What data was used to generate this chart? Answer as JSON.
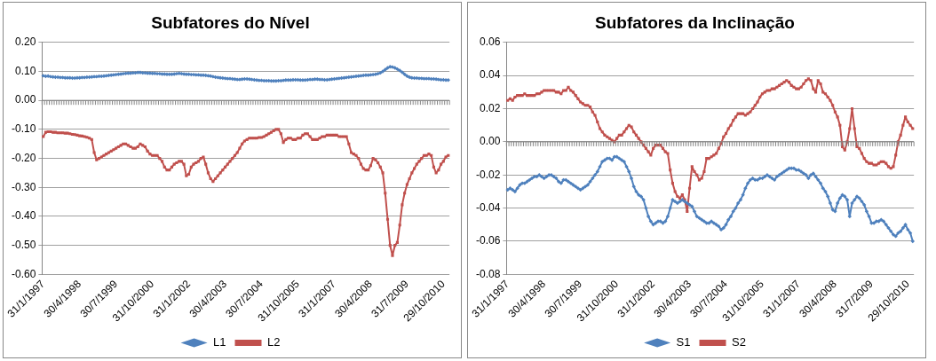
{
  "chart_data": [
    {
      "type": "line",
      "title": "Subfatores do Nível",
      "grid": "y",
      "legend": "bottom",
      "line_style": "solid",
      "categories": [
        "31/1/1997",
        null,
        null,
        null,
        null,
        null,
        null,
        null,
        null,
        null,
        null,
        null,
        null,
        null,
        null,
        "30/4/1998",
        null,
        null,
        null,
        null,
        null,
        null,
        null,
        null,
        null,
        null,
        null,
        null,
        null,
        null,
        "30/7/1999",
        null,
        null,
        null,
        null,
        null,
        null,
        null,
        null,
        null,
        null,
        null,
        null,
        null,
        null,
        "31/10/2000",
        null,
        null,
        null,
        null,
        null,
        null,
        null,
        null,
        null,
        null,
        null,
        null,
        null,
        null,
        "31/1/2002",
        null,
        null,
        null,
        null,
        null,
        null,
        null,
        null,
        null,
        null,
        null,
        null,
        null,
        null,
        "30/4/2003",
        null,
        null,
        null,
        null,
        null,
        null,
        null,
        null,
        null,
        null,
        null,
        null,
        null,
        null,
        "30/7/2004",
        null,
        null,
        null,
        null,
        null,
        null,
        null,
        null,
        null,
        null,
        null,
        null,
        null,
        null,
        "31/10/2005",
        null,
        null,
        null,
        null,
        null,
        null,
        null,
        null,
        null,
        null,
        null,
        null,
        null,
        null,
        "31/1/2007",
        null,
        null,
        null,
        null,
        null,
        null,
        null,
        null,
        null,
        null,
        null,
        null,
        null,
        null,
        "30/4/2008",
        null,
        null,
        null,
        null,
        null,
        null,
        null,
        null,
        null,
        null,
        null,
        null,
        null,
        null,
        "31/7/2009",
        null,
        null,
        null,
        null,
        null,
        null,
        null,
        null,
        null,
        null,
        null,
        null,
        null,
        null,
        "29/10/2010",
        null,
        null
      ],
      "ylim": [
        -0.6,
        0.2
      ],
      "yticks": [
        {
          "value": -0.6,
          "label": "-0.60"
        },
        {
          "value": -0.5,
          "label": "-0.50"
        },
        {
          "value": -0.4,
          "label": "-0.40"
        },
        {
          "value": -0.3,
          "label": "-0.30"
        },
        {
          "value": -0.2,
          "label": "-0.20"
        },
        {
          "value": -0.1,
          "label": "-0.10"
        },
        {
          "value": 0,
          "label": "0.00"
        },
        {
          "value": 0.1,
          "label": "0.10"
        },
        {
          "value": 0.2,
          "label": "0.20"
        }
      ],
      "series": [
        {
          "name": "L1",
          "color": "#4f81bd",
          "marker": "diamond",
          "values": [
            0.085,
            0.083,
            0.084,
            0.082,
            0.081,
            0.08,
            0.08,
            0.079,
            0.079,
            0.078,
            0.078,
            0.078,
            0.077,
            0.077,
            0.078,
            0.078,
            0.079,
            0.079,
            0.08,
            0.08,
            0.081,
            0.082,
            0.082,
            0.083,
            0.083,
            0.084,
            0.085,
            0.086,
            0.087,
            0.088,
            0.089,
            0.09,
            0.091,
            0.092,
            0.093,
            0.094,
            0.094,
            0.095,
            0.095,
            0.096,
            0.096,
            0.095,
            0.095,
            0.094,
            0.094,
            0.093,
            0.093,
            0.092,
            0.092,
            0.091,
            0.091,
            0.09,
            0.09,
            0.09,
            0.091,
            0.092,
            0.093,
            0.092,
            0.091,
            0.09,
            0.09,
            0.089,
            0.089,
            0.088,
            0.088,
            0.087,
            0.087,
            0.086,
            0.085,
            0.084,
            0.082,
            0.08,
            0.079,
            0.078,
            0.077,
            0.076,
            0.075,
            0.075,
            0.074,
            0.073,
            0.072,
            0.072,
            0.073,
            0.074,
            0.074,
            0.073,
            0.072,
            0.071,
            0.07,
            0.069,
            0.069,
            0.068,
            0.068,
            0.068,
            0.067,
            0.067,
            0.067,
            0.068,
            0.068,
            0.069,
            0.07,
            0.07,
            0.07,
            0.071,
            0.071,
            0.071,
            0.07,
            0.07,
            0.07,
            0.071,
            0.072,
            0.072,
            0.073,
            0.073,
            0.072,
            0.072,
            0.071,
            0.071,
            0.072,
            0.073,
            0.074,
            0.075,
            0.076,
            0.077,
            0.078,
            0.079,
            0.08,
            0.081,
            0.082,
            0.083,
            0.084,
            0.085,
            0.086,
            0.087,
            0.087,
            0.088,
            0.089,
            0.09,
            0.092,
            0.095,
            0.1,
            0.106,
            0.112,
            0.116,
            0.115,
            0.112,
            0.108,
            0.103,
            0.097,
            0.09,
            0.084,
            0.08,
            0.078,
            0.077,
            0.077,
            0.076,
            0.076,
            0.075,
            0.075,
            0.075,
            0.074,
            0.074,
            0.073,
            0.072,
            0.071,
            0.071,
            0.07,
            0.07
          ]
        },
        {
          "name": "L2",
          "color": "#c0504d",
          "marker": "square",
          "values": [
            -0.125,
            -0.11,
            -0.108,
            -0.108,
            -0.11,
            -0.11,
            -0.112,
            -0.112,
            -0.112,
            -0.113,
            -0.113,
            -0.115,
            -0.117,
            -0.118,
            -0.12,
            -0.122,
            -0.123,
            -0.125,
            -0.127,
            -0.13,
            -0.135,
            -0.18,
            -0.205,
            -0.2,
            -0.195,
            -0.19,
            -0.185,
            -0.18,
            -0.175,
            -0.17,
            -0.165,
            -0.16,
            -0.155,
            -0.15,
            -0.15,
            -0.155,
            -0.16,
            -0.165,
            -0.165,
            -0.16,
            -0.15,
            -0.155,
            -0.16,
            -0.175,
            -0.185,
            -0.19,
            -0.19,
            -0.19,
            -0.2,
            -0.21,
            -0.23,
            -0.24,
            -0.24,
            -0.23,
            -0.22,
            -0.215,
            -0.21,
            -0.21,
            -0.22,
            -0.26,
            -0.255,
            -0.23,
            -0.22,
            -0.215,
            -0.21,
            -0.2,
            -0.195,
            -0.22,
            -0.25,
            -0.27,
            -0.28,
            -0.27,
            -0.26,
            -0.25,
            -0.24,
            -0.23,
            -0.22,
            -0.21,
            -0.2,
            -0.19,
            -0.18,
            -0.165,
            -0.15,
            -0.14,
            -0.135,
            -0.13,
            -0.13,
            -0.13,
            -0.13,
            -0.128,
            -0.128,
            -0.125,
            -0.12,
            -0.115,
            -0.11,
            -0.105,
            -0.1,
            -0.1,
            -0.115,
            -0.145,
            -0.135,
            -0.13,
            -0.13,
            -0.135,
            -0.135,
            -0.13,
            -0.13,
            -0.12,
            -0.115,
            -0.115,
            -0.125,
            -0.135,
            -0.135,
            -0.135,
            -0.13,
            -0.125,
            -0.125,
            -0.12,
            -0.12,
            -0.12,
            -0.12,
            -0.12,
            -0.125,
            -0.125,
            -0.125,
            -0.125,
            -0.15,
            -0.18,
            -0.185,
            -0.19,
            -0.2,
            -0.22,
            -0.235,
            -0.24,
            -0.24,
            -0.225,
            -0.2,
            -0.205,
            -0.215,
            -0.23,
            -0.25,
            -0.32,
            -0.41,
            -0.5,
            -0.535,
            -0.5,
            -0.49,
            -0.43,
            -0.36,
            -0.32,
            -0.29,
            -0.27,
            -0.25,
            -0.235,
            -0.22,
            -0.21,
            -0.2,
            -0.19,
            -0.19,
            -0.185,
            -0.19,
            -0.23,
            -0.25,
            -0.24,
            -0.22,
            -0.21,
            -0.195,
            -0.19
          ]
        }
      ]
    },
    {
      "type": "line",
      "title": "Subfatores da Inclinação",
      "grid": "y",
      "legend": "bottom",
      "line_style": "solid",
      "categories": [
        "31/1/1997",
        null,
        null,
        null,
        null,
        null,
        null,
        null,
        null,
        null,
        null,
        null,
        null,
        null,
        null,
        "30/4/1998",
        null,
        null,
        null,
        null,
        null,
        null,
        null,
        null,
        null,
        null,
        null,
        null,
        null,
        null,
        "30/7/1999",
        null,
        null,
        null,
        null,
        null,
        null,
        null,
        null,
        null,
        null,
        null,
        null,
        null,
        null,
        "31/10/2000",
        null,
        null,
        null,
        null,
        null,
        null,
        null,
        null,
        null,
        null,
        null,
        null,
        null,
        null,
        "31/1/2002",
        null,
        null,
        null,
        null,
        null,
        null,
        null,
        null,
        null,
        null,
        null,
        null,
        null,
        null,
        "30/4/2003",
        null,
        null,
        null,
        null,
        null,
        null,
        null,
        null,
        null,
        null,
        null,
        null,
        null,
        null,
        "30/7/2004",
        null,
        null,
        null,
        null,
        null,
        null,
        null,
        null,
        null,
        null,
        null,
        null,
        null,
        null,
        "31/10/2005",
        null,
        null,
        null,
        null,
        null,
        null,
        null,
        null,
        null,
        null,
        null,
        null,
        null,
        null,
        "31/1/2007",
        null,
        null,
        null,
        null,
        null,
        null,
        null,
        null,
        null,
        null,
        null,
        null,
        null,
        null,
        "30/4/2008",
        null,
        null,
        null,
        null,
        null,
        null,
        null,
        null,
        null,
        null,
        null,
        null,
        null,
        null,
        "31/7/2009",
        null,
        null,
        null,
        null,
        null,
        null,
        null,
        null,
        null,
        null,
        null,
        null,
        null,
        null,
        "29/10/2010",
        null,
        null
      ],
      "ylim": [
        -0.08,
        0.06
      ],
      "yticks": [
        {
          "value": -0.08,
          "label": "-0.08"
        },
        {
          "value": -0.06,
          "label": "-0.06"
        },
        {
          "value": -0.04,
          "label": "-0.04"
        },
        {
          "value": -0.02,
          "label": "-0.02"
        },
        {
          "value": 0,
          "label": "0.00"
        },
        {
          "value": 0.02,
          "label": "0.02"
        },
        {
          "value": 0.04,
          "label": "0.04"
        },
        {
          "value": 0.06,
          "label": "0.06"
        }
      ],
      "series": [
        {
          "name": "S1",
          "color": "#4f81bd",
          "marker": "diamond",
          "values": [
            -0.029,
            -0.028,
            -0.029,
            -0.03,
            -0.028,
            -0.026,
            -0.025,
            -0.025,
            -0.024,
            -0.023,
            -0.022,
            -0.021,
            -0.021,
            -0.02,
            -0.021,
            -0.022,
            -0.021,
            -0.02,
            -0.02,
            -0.021,
            -0.022,
            -0.024,
            -0.025,
            -0.023,
            -0.023,
            -0.024,
            -0.025,
            -0.026,
            -0.027,
            -0.028,
            -0.029,
            -0.028,
            -0.027,
            -0.026,
            -0.024,
            -0.022,
            -0.02,
            -0.018,
            -0.015,
            -0.012,
            -0.011,
            -0.01,
            -0.01,
            -0.011,
            -0.009,
            -0.009,
            -0.01,
            -0.011,
            -0.012,
            -0.015,
            -0.018,
            -0.022,
            -0.027,
            -0.03,
            -0.032,
            -0.033,
            -0.035,
            -0.04,
            -0.045,
            -0.048,
            -0.05,
            -0.049,
            -0.048,
            -0.048,
            -0.049,
            -0.048,
            -0.045,
            -0.04,
            -0.035,
            -0.036,
            -0.037,
            -0.036,
            -0.035,
            -0.036,
            -0.037,
            -0.038,
            -0.039,
            -0.042,
            -0.045,
            -0.046,
            -0.047,
            -0.048,
            -0.049,
            -0.049,
            -0.048,
            -0.049,
            -0.05,
            -0.051,
            -0.053,
            -0.052,
            -0.05,
            -0.047,
            -0.045,
            -0.042,
            -0.04,
            -0.037,
            -0.035,
            -0.032,
            -0.028,
            -0.025,
            -0.023,
            -0.022,
            -0.023,
            -0.023,
            -0.022,
            -0.022,
            -0.021,
            -0.02,
            -0.021,
            -0.022,
            -0.023,
            -0.021,
            -0.02,
            -0.019,
            -0.018,
            -0.017,
            -0.016,
            -0.016,
            -0.016,
            -0.017,
            -0.017,
            -0.018,
            -0.019,
            -0.02,
            -0.022,
            -0.02,
            -0.019,
            -0.021,
            -0.023,
            -0.025,
            -0.028,
            -0.03,
            -0.033,
            -0.037,
            -0.041,
            -0.042,
            -0.037,
            -0.034,
            -0.032,
            -0.033,
            -0.035,
            -0.045,
            -0.037,
            -0.035,
            -0.033,
            -0.034,
            -0.036,
            -0.038,
            -0.042,
            -0.045,
            -0.049,
            -0.049,
            -0.048,
            -0.048,
            -0.047,
            -0.048,
            -0.05,
            -0.052,
            -0.054,
            -0.056,
            -0.057,
            -0.055,
            -0.054,
            -0.052,
            -0.05,
            -0.053,
            -0.055,
            -0.06
          ]
        },
        {
          "name": "S2",
          "color": "#c0504d",
          "marker": "square",
          "values": [
            0.025,
            0.026,
            0.025,
            0.027,
            0.028,
            0.028,
            0.028,
            0.029,
            0.028,
            0.028,
            0.028,
            0.028,
            0.029,
            0.029,
            0.03,
            0.031,
            0.031,
            0.031,
            0.031,
            0.031,
            0.03,
            0.03,
            0.029,
            0.031,
            0.031,
            0.033,
            0.031,
            0.03,
            0.028,
            0.026,
            0.024,
            0.023,
            0.022,
            0.022,
            0.021,
            0.018,
            0.016,
            0.012,
            0.008,
            0.006,
            0.004,
            0.003,
            0.002,
            0.001,
            0.0,
            0.002,
            0.004,
            0.004,
            0.006,
            0.008,
            0.01,
            0.009,
            0.006,
            0.004,
            0.002,
            0.0,
            -0.002,
            -0.004,
            -0.006,
            -0.008,
            -0.004,
            -0.002,
            -0.002,
            -0.002,
            -0.004,
            -0.006,
            -0.007,
            -0.017,
            -0.025,
            -0.03,
            -0.033,
            -0.034,
            -0.032,
            -0.035,
            -0.042,
            -0.028,
            -0.015,
            -0.018,
            -0.02,
            -0.023,
            -0.022,
            -0.018,
            -0.01,
            -0.01,
            -0.009,
            -0.008,
            -0.007,
            -0.004,
            -0.001,
            0.003,
            0.005,
            0.008,
            0.01,
            0.013,
            0.015,
            0.017,
            0.017,
            0.017,
            0.016,
            0.017,
            0.018,
            0.02,
            0.022,
            0.024,
            0.027,
            0.029,
            0.03,
            0.031,
            0.031,
            0.032,
            0.032,
            0.033,
            0.034,
            0.035,
            0.036,
            0.037,
            0.036,
            0.034,
            0.033,
            0.032,
            0.032,
            0.033,
            0.035,
            0.037,
            0.038,
            0.037,
            0.032,
            0.03,
            0.037,
            0.035,
            0.03,
            0.029,
            0.027,
            0.025,
            0.022,
            0.018,
            0.015,
            0.01,
            -0.003,
            -0.005,
            0.0,
            0.008,
            0.02,
            0.008,
            -0.003,
            -0.004,
            -0.007,
            -0.01,
            -0.012,
            -0.013,
            -0.013,
            -0.014,
            -0.014,
            -0.013,
            -0.012,
            -0.012,
            -0.013,
            -0.015,
            -0.016,
            -0.015,
            -0.008,
            0.0,
            0.004,
            0.01,
            0.015,
            0.012,
            0.01,
            0.008
          ]
        }
      ]
    }
  ]
}
